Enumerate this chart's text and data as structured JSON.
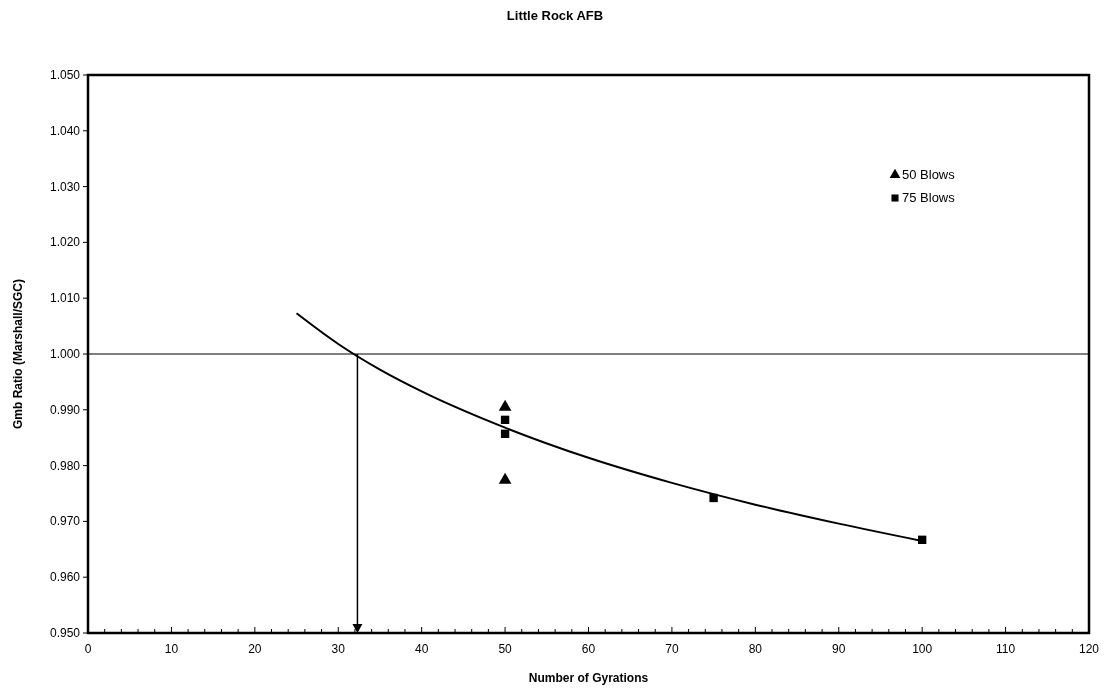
{
  "chart_data": {
    "type": "scatter",
    "title": "Little Rock AFB",
    "xlabel": "Number of Gyrations",
    "ylabel": "Gmb Ratio (Marshall/SGC)",
    "xlim": [
      0,
      120
    ],
    "ylim": [
      0.95,
      1.05
    ],
    "xticks": [
      0,
      {
        "value": 2,
        "label": null
      },
      {
        "value": 4,
        "label": null
      },
      {
        "value": 6,
        "label": null
      },
      {
        "value": 8,
        "label": null
      },
      10,
      {
        "value": 12,
        "label": null
      },
      {
        "value": 14,
        "label": null
      },
      {
        "value": 16,
        "label": null
      },
      {
        "value": 18,
        "label": null
      },
      20,
      {
        "value": 22,
        "label": null
      },
      {
        "value": 24,
        "label": null
      },
      {
        "value": 26,
        "label": null
      },
      {
        "value": 28,
        "label": null
      },
      30,
      {
        "value": 32,
        "label": null
      },
      {
        "value": 34,
        "label": null
      },
      {
        "value": 36,
        "label": null
      },
      {
        "value": 38,
        "label": null
      },
      40,
      {
        "value": 42,
        "label": null
      },
      {
        "value": 44,
        "label": null
      },
      {
        "value": 46,
        "label": null
      },
      {
        "value": 48,
        "label": null
      },
      50,
      {
        "value": 52,
        "label": null
      },
      {
        "value": 54,
        "label": null
      },
      {
        "value": 56,
        "label": null
      },
      {
        "value": 58,
        "label": null
      },
      60,
      {
        "value": 62,
        "label": null
      },
      {
        "value": 64,
        "label": null
      },
      {
        "value": 66,
        "label": null
      },
      {
        "value": 68,
        "label": null
      },
      70,
      {
        "value": 72,
        "label": null
      },
      {
        "value": 74,
        "label": null
      },
      {
        "value": 76,
        "label": null
      },
      {
        "value": 78,
        "label": null
      },
      80,
      {
        "value": 82,
        "label": null
      },
      {
        "value": 84,
        "label": null
      },
      {
        "value": 86,
        "label": null
      },
      {
        "value": 88,
        "label": null
      },
      90,
      {
        "value": 92,
        "label": null
      },
      {
        "value": 94,
        "label": null
      },
      {
        "value": 96,
        "label": null
      },
      {
        "value": 98,
        "label": null
      },
      100,
      {
        "value": 102,
        "label": null
      },
      {
        "value": 104,
        "label": null
      },
      {
        "value": 106,
        "label": null
      },
      {
        "value": 108,
        "label": null
      },
      110,
      {
        "value": 112,
        "label": null
      },
      {
        "value": 114,
        "label": null
      },
      {
        "value": 116,
        "label": null
      },
      {
        "value": 118,
        "label": null
      },
      120
    ],
    "yticks": [
      {
        "value": 0.95,
        "label": "0.950"
      },
      {
        "value": 0.96,
        "label": "0.960"
      },
      {
        "value": 0.97,
        "label": "0.970"
      },
      {
        "value": 0.98,
        "label": "0.980"
      },
      {
        "value": 0.99,
        "label": "0.990"
      },
      {
        "value": 1.0,
        "label": "1.000"
      },
      {
        "value": 1.01,
        "label": "1.010"
      },
      {
        "value": 1.02,
        "label": "1.020"
      },
      {
        "value": 1.03,
        "label": "1.030"
      },
      {
        "value": 1.04,
        "label": "1.040"
      },
      {
        "value": 1.05,
        "label": "1.050"
      }
    ],
    "grid": false,
    "legend": "top right",
    "ref_lines": [
      {
        "axis": "y",
        "value": 1.0,
        "color": "#000000"
      },
      {
        "axis": "x",
        "value": 32.3,
        "color": "#000000"
      }
    ],
    "series": [
      {
        "name": "50 Blows",
        "marker": "triangle",
        "color": "#000000",
        "x": [
          50,
          50
        ],
        "values": [
          0.9905,
          0.9774
        ]
      },
      {
        "name": "75 Blows",
        "marker": "square",
        "color": "#000000",
        "x": [
          50,
          50,
          75,
          100
        ],
        "values": [
          0.9882,
          0.9857,
          0.9742,
          0.9667
        ]
      },
      {
        "type": "line",
        "marker": "none",
        "line_style": "solid",
        "color": "#000000",
        "x": [
          25,
          30,
          35,
          40,
          50,
          60,
          70,
          80,
          90,
          100
        ],
        "values": [
          1.0073,
          1.0018,
          0.9972,
          0.9933,
          0.9868,
          0.9814,
          0.9769,
          0.973,
          0.9696,
          0.9665
        ]
      }
    ]
  }
}
